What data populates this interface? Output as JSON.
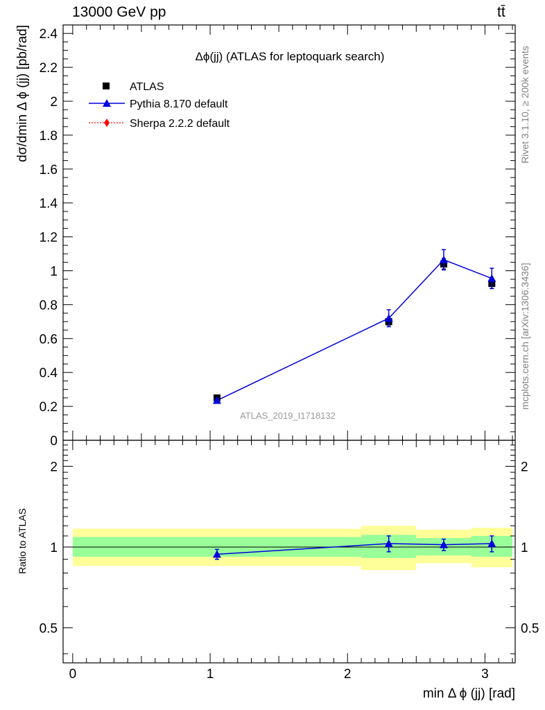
{
  "header": {
    "energy_label": "13000 GeV pp",
    "process_label": "tt̄"
  },
  "side_labels": {
    "rivet": "Rivet 3.1.10, ≥ 200k events",
    "mcplots": "mcplots.cern.ch [arXiv:1306.3436]"
  },
  "chart_data": [
    {
      "type": "scatter",
      "title": "Δϕ(jj) (ATLAS for leptoquark search)",
      "ylabel": "dσ/dmin Δ ϕ (jj) [pb/rad]",
      "watermark": "ATLAS_2019_I1718132",
      "ylim": [
        0,
        2.45
      ],
      "xlim": [
        -0.07,
        3.22
      ],
      "y_ticks": [
        "0",
        "0.2",
        "0.4",
        "0.6",
        "0.8",
        "1",
        "1.2",
        "1.4",
        "1.6",
        "1.8",
        "2",
        "2.2",
        "2.4"
      ],
      "legend_position": "top-left",
      "series": [
        {
          "name": "ATLAS",
          "color": "#000000",
          "marker": "square",
          "x": [
            1.05,
            2.3,
            2.7,
            3.05
          ],
          "y": [
            0.25,
            0.7,
            1.04,
            0.925
          ],
          "yerr": [
            0.01,
            0.02,
            0.03,
            0.03
          ]
        },
        {
          "name": "Pythia 8.170 default",
          "color": "#0000dd",
          "marker": "triangle",
          "x": [
            1.05,
            2.3,
            2.7,
            3.05
          ],
          "y": [
            0.235,
            0.72,
            1.065,
            0.955
          ],
          "yerr": [
            0.01,
            0.05,
            0.06,
            0.06
          ]
        },
        {
          "name": "Sherpa 2.2.2 default",
          "color": "#ff0000",
          "marker": "diamond",
          "x": [],
          "y": []
        }
      ]
    },
    {
      "type": "line",
      "ylabel": "Ratio to ATLAS",
      "xlabel": "min Δ ϕ (jj) [rad]",
      "y_scale": "log",
      "ylim": [
        0.37,
        2.5
      ],
      "xlim": [
        -0.07,
        3.22
      ],
      "x_ticks": [
        "0",
        "1",
        "2",
        "3"
      ],
      "y_ticks": [
        "0.5",
        "1",
        "2"
      ],
      "reference_line": 1,
      "bands": {
        "bin_edges": [
          0,
          2.1,
          2.5,
          2.9,
          3.2
        ],
        "green": {
          "color": "#99ff99",
          "lo": [
            0.92,
            0.91,
            0.93,
            0.92
          ],
          "hi": [
            1.09,
            1.11,
            1.08,
            1.1
          ]
        },
        "yellow": {
          "color": "#ffff99",
          "lo": [
            0.85,
            0.82,
            0.87,
            0.84
          ],
          "hi": [
            1.17,
            1.2,
            1.16,
            1.18
          ]
        }
      },
      "series": [
        {
          "name": "Pythia 8.170 default",
          "color": "#0000dd",
          "x": [
            1.05,
            2.3,
            2.7,
            3.05
          ],
          "y": [
            0.94,
            1.03,
            1.02,
            1.03
          ],
          "yerr": [
            0.04,
            0.07,
            0.05,
            0.07
          ]
        }
      ]
    }
  ]
}
